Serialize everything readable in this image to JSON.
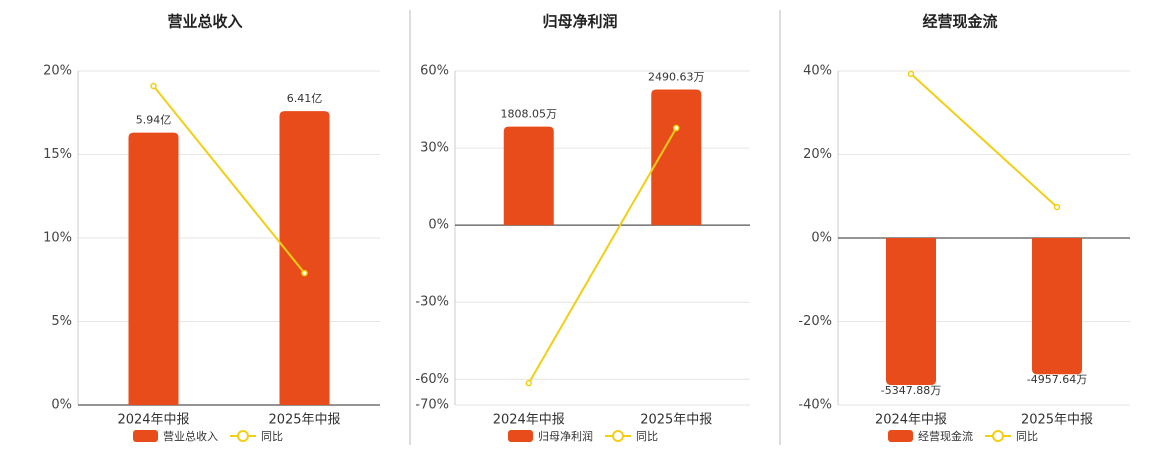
{
  "chart_data": [
    {
      "type": "bar",
      "title": "营业总收入",
      "categories": [
        "2024年中报",
        "2025年中报"
      ],
      "series": [
        {
          "name": "营业总收入",
          "color": "#e84c1b",
          "values": [
            5.94,
            6.41
          ],
          "value_labels": [
            "5.94亿",
            "6.41亿"
          ]
        },
        {
          "name": "同比",
          "type": "line",
          "color": "#f2cf14",
          "values": [
            19.1,
            7.9
          ]
        }
      ],
      "ylim": [
        0,
        20
      ],
      "yticks": [
        {
          "value": 0,
          "label": "0%"
        },
        {
          "value": 5,
          "label": "5%"
        },
        {
          "value": 10,
          "label": "10%"
        },
        {
          "value": 15,
          "label": "15%"
        },
        {
          "value": 20,
          "label": "20%"
        }
      ],
      "grid": true
    },
    {
      "type": "bar",
      "title": "归母净利润",
      "categories": [
        "2024年中报",
        "2025年中报"
      ],
      "series": [
        {
          "name": "归母净利润",
          "color": "#e84c1b",
          "values": [
            1808.05,
            2490.63
          ],
          "value_labels": [
            "1808.05万",
            "2490.63万"
          ]
        },
        {
          "name": "同比",
          "type": "line",
          "color": "#f2cf14",
          "values": [
            -61.5,
            37.8
          ]
        }
      ],
      "ylim": [
        -70,
        60
      ],
      "yticks": [
        {
          "value": -70,
          "label": "-70%"
        },
        {
          "value": -60,
          "label": "-60%"
        },
        {
          "value": -30,
          "label": "-30%"
        },
        {
          "value": 0,
          "label": "0%"
        },
        {
          "value": 30,
          "label": "30%"
        },
        {
          "value": 60,
          "label": "60%"
        }
      ],
      "grid": true
    },
    {
      "type": "bar",
      "title": "经营现金流",
      "categories": [
        "2024年中报",
        "2025年中报"
      ],
      "series": [
        {
          "name": "经营现金流",
          "color": "#e84c1b",
          "values": [
            -5347.88,
            -4957.64
          ],
          "value_labels": [
            "-5347.88万",
            "-4957.64万"
          ]
        },
        {
          "name": "同比",
          "type": "line",
          "color": "#f2cf14",
          "values": [
            39.3,
            7.4
          ]
        }
      ],
      "ylim": [
        -40,
        40
      ],
      "yticks": [
        {
          "value": -40,
          "label": "-40%"
        },
        {
          "value": -20,
          "label": "-20%"
        },
        {
          "value": 0,
          "label": "0%"
        },
        {
          "value": 20,
          "label": "20%"
        },
        {
          "value": 40,
          "label": "40%"
        }
      ],
      "grid": true
    }
  ]
}
